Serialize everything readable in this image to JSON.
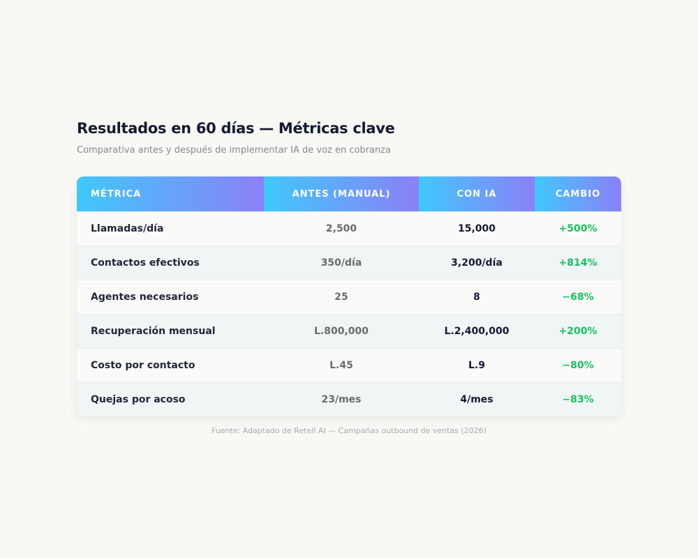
{
  "header": {
    "title": "Resultados en 60 días — Métricas clave",
    "subtitle": "Comparativa antes y después de implementar IA de voz en cobranza"
  },
  "table": {
    "columns": [
      "MÉTRICA",
      "ANTES (MANUAL)",
      "CON IA",
      "CAMBIO"
    ],
    "rows": [
      [
        "Llamadas/día",
        "2,500",
        "15,000",
        "+500%"
      ],
      [
        "Contactos efectivos",
        "350/día",
        "3,200/día",
        "+814%"
      ],
      [
        "Agentes necesarios",
        "25",
        "8",
        "−68%"
      ],
      [
        "Recuperación mensual",
        "L.800,000",
        "L.2,400,000",
        "+200%"
      ],
      [
        "Costo por contacto",
        "L.45",
        "L.9",
        "−80%"
      ],
      [
        "Quejas por acoso",
        "23/mes",
        "4/mes",
        "−83%"
      ]
    ]
  },
  "footer": {
    "source": "Fuente: Adaptado de Retell AI — Campañas outbound de ventas (2026)"
  }
}
